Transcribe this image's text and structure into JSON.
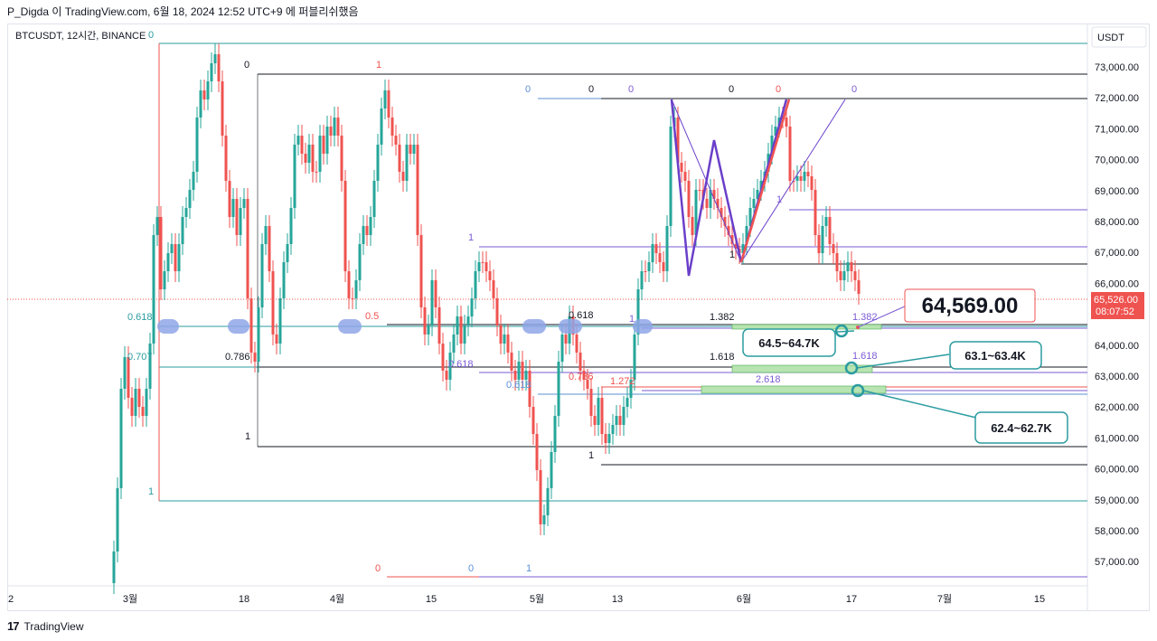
{
  "header": {
    "text": "P_Digda 이 TradingView.com, 6월 18, 2024 12:52 UTC+9 에 퍼블리쉬했음"
  },
  "symbol": {
    "text": "BTCUSDT, 12시간, BINANCE",
    "zero_label": "0"
  },
  "price_axis": {
    "unit_button": "USDT",
    "ticks": [
      "73,000.00",
      "72,000.00",
      "71,000.00",
      "70,000.00",
      "69,000.00",
      "68,000.00",
      "67,000.00",
      "66,000.00",
      "65,000.00",
      "64,000.00",
      "63,000.00",
      "62,000.00",
      "61,000.00",
      "60,000.00",
      "59,000.00",
      "58,000.00",
      "57,000.00"
    ],
    "last_price": "65,526.00",
    "countdown": "08:07:52"
  },
  "time_axis": {
    "ticks": [
      "2",
      "3월",
      "18",
      "4월",
      "15",
      "5월",
      "13",
      "6월",
      "17",
      "7월",
      "15"
    ]
  },
  "callouts": {
    "main_price": "64,569.00",
    "zone_1": "64.5~64.7K",
    "zone_2": "63.1~63.4K",
    "zone_3": "62.4~62.7K"
  },
  "fib_labels": {
    "l_0_top": "0",
    "l_1_top": "1",
    "l_0618_left": "0.618",
    "l_0707": "0.707",
    "l_0786": "0.786",
    "l_1_mid": "1",
    "l_1_low": "1",
    "l_05": "0.5",
    "l_0_red": "0",
    "l_0_blue_bottom": "0",
    "l_1_blue_bottom": "1",
    "l_1_mid2": "1",
    "l_0618_mid": "0.618",
    "l_0618_purple": "0.618",
    "l_0618_blue": "0.618",
    "l_0786_red": "0.786",
    "l_1272": "1.272",
    "l_1_may": "1",
    "l_1_may2": "1",
    "l_0_a": "0",
    "l_0_b": "0",
    "l_0_c": "0",
    "l_0_d": "0",
    "l_0_e": "0",
    "l_0_f": "0",
    "l_1382": "1.382",
    "l_1618": "1.618",
    "l_2618": "2.618",
    "l_1382_p": "1.382",
    "l_1618_b": "1.618",
    "l_1_right": "1",
    "l_1_june": "1"
  },
  "footer": {
    "brand": "TradingView",
    "logo": "17"
  },
  "colors": {
    "up": "#26a69a",
    "down": "#ef5350",
    "teal": "#2b9ca0",
    "purple": "#7b5bd6",
    "blue_zone": "#8fa6e8",
    "green_zone": "#b7e4b0"
  }
}
